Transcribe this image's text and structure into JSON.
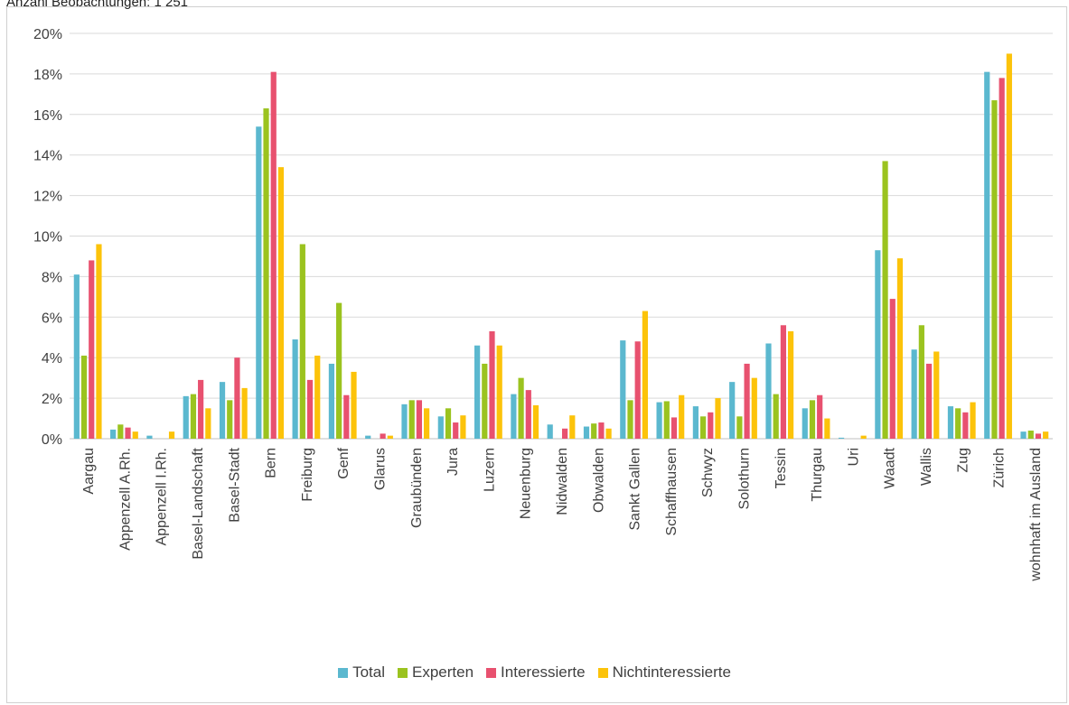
{
  "header_note": "Anzahl Beobachtungen: 1 251",
  "chart_data": {
    "type": "bar",
    "title": "",
    "xlabel": "",
    "ylabel": "",
    "ylim": [
      0,
      20
    ],
    "y_tick_labels": [
      "0%",
      "2%",
      "4%",
      "6%",
      "8%",
      "10%",
      "12%",
      "14%",
      "16%",
      "18%",
      "20%"
    ],
    "grid": true,
    "legend_position": "bottom",
    "categories": [
      "Aargau",
      "Appenzell A.Rh.",
      "Appenzell I.Rh.",
      "Basel-Landschaft",
      "Basel-Stadt",
      "Bern",
      "Freiburg",
      "Genf",
      "Glarus",
      "Graubünden",
      "Jura",
      "Luzern",
      "Neuenburg",
      "Nidwalden",
      "Obwalden",
      "Sankt Gallen",
      "Schaffhausen",
      "Schwyz",
      "Solothurn",
      "Tessin",
      "Thurgau",
      "Uri",
      "Waadt",
      "Wallis",
      "Zug",
      "Zürich",
      "wohnhaft im Ausland"
    ],
    "series": [
      {
        "name": "Total",
        "color": "#5bb8cf",
        "values": [
          8.1,
          0.45,
          0.15,
          2.1,
          2.8,
          15.4,
          4.9,
          3.7,
          0.15,
          1.7,
          1.1,
          4.6,
          2.2,
          0.7,
          0.6,
          4.85,
          1.8,
          1.6,
          2.8,
          4.7,
          1.5,
          0.05,
          9.3,
          4.4,
          1.6,
          18.1,
          0.35
        ]
      },
      {
        "name": "Experten",
        "color": "#9bc31f",
        "values": [
          4.1,
          0.7,
          0.0,
          2.2,
          1.9,
          16.3,
          9.6,
          6.7,
          0.0,
          1.9,
          1.5,
          3.7,
          3.0,
          0.0,
          0.75,
          1.9,
          1.85,
          1.1,
          1.1,
          2.2,
          1.9,
          0.0,
          13.7,
          5.6,
          1.5,
          16.7,
          0.4
        ]
      },
      {
        "name": "Interessierte",
        "color": "#e8516f",
        "values": [
          8.8,
          0.55,
          0.0,
          2.9,
          4.0,
          18.1,
          2.9,
          2.15,
          0.25,
          1.9,
          0.8,
          5.3,
          2.4,
          0.5,
          0.8,
          4.8,
          1.05,
          1.3,
          3.7,
          5.6,
          2.15,
          0.0,
          6.9,
          3.7,
          1.3,
          17.8,
          0.25
        ]
      },
      {
        "name": "Nichtinteressierte",
        "color": "#fcc30a",
        "values": [
          9.6,
          0.35,
          0.35,
          1.5,
          2.5,
          13.4,
          4.1,
          3.3,
          0.15,
          1.5,
          1.15,
          4.6,
          1.65,
          1.15,
          0.5,
          6.3,
          2.15,
          2.0,
          3.0,
          5.3,
          1.0,
          0.15,
          8.9,
          4.3,
          1.8,
          19.0,
          0.35
        ]
      }
    ]
  }
}
